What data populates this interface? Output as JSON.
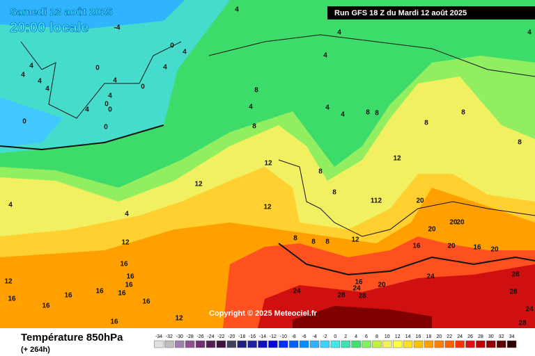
{
  "header": {
    "date": "Samedi 23 août 2025",
    "time": "20:00 locale",
    "run": "Run GFS 18 Z du Mardi 12 août 2025"
  },
  "copyright": "Copyright © 2025 Meteociel.fr",
  "footer": {
    "title": "Température 850hPa",
    "lead": "(+ 264h)"
  },
  "legend": {
    "values": [
      -34,
      -32,
      -30,
      -28,
      -26,
      -24,
      -22,
      -20,
      -18,
      -16,
      -14,
      -12,
      -10,
      -8,
      -6,
      -4,
      -2,
      0,
      2,
      4,
      6,
      8,
      10,
      12,
      14,
      16,
      18,
      20,
      22,
      24,
      26,
      28,
      30,
      32,
      34
    ],
    "colors": [
      "#e0e0e0",
      "#bdbdbd",
      "#a080b0",
      "#905090",
      "#703070",
      "#502050",
      "#401040",
      "#404060",
      "#202080",
      "#2020a0",
      "#1010c0",
      "#0000e0",
      "#0030ff",
      "#0060ff",
      "#0090ff",
      "#30b0ff",
      "#40d0ff",
      "#40e8e8",
      "#40e0b0",
      "#40e070",
      "#80f060",
      "#c0f040",
      "#f0f060",
      "#ffff40",
      "#ffe020",
      "#ffc000",
      "#ffa000",
      "#ff8000",
      "#ff6000",
      "#ff3000",
      "#e01010",
      "#c00000",
      "#900000",
      "#600000",
      "#300000"
    ]
  },
  "contour_labels": [
    -4,
    4,
    0,
    4,
    0,
    4,
    4,
    4,
    4,
    4,
    4,
    0,
    4,
    0,
    4,
    0,
    0,
    0,
    4,
    4,
    4,
    8,
    4,
    4,
    4,
    8,
    8,
    8,
    8,
    8,
    8,
    12,
    12,
    8,
    12,
    8,
    112,
    12,
    20,
    4,
    4,
    20,
    20,
    20,
    12,
    8,
    8,
    8,
    12,
    16,
    20,
    16,
    20,
    16,
    12,
    16,
    16,
    24,
    16,
    20,
    24,
    24,
    16,
    16,
    28,
    28,
    16,
    16,
    28,
    28,
    16,
    16,
    24,
    16,
    12,
    28
  ]
}
